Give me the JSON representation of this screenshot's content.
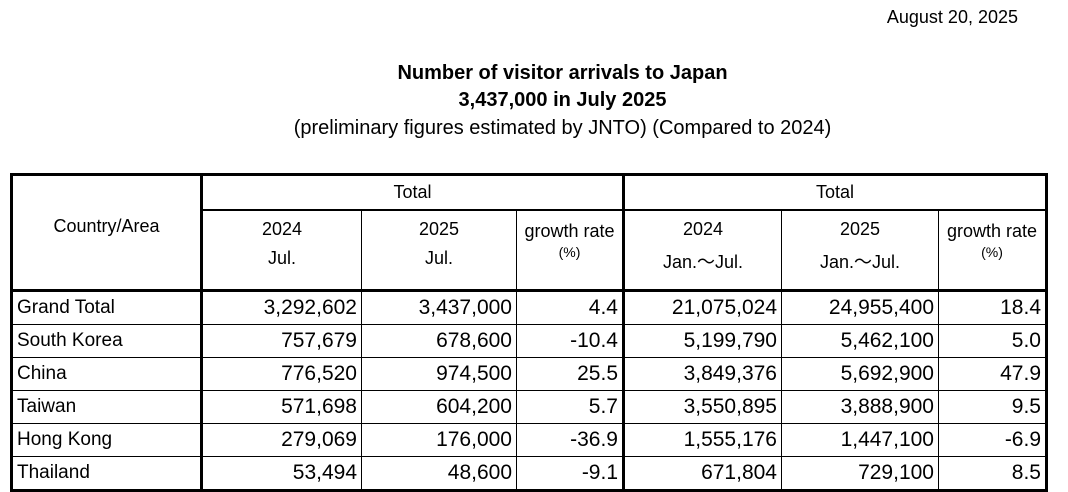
{
  "date": "August 20, 2025",
  "title": "Number of visitor arrivals to Japan",
  "headline": "3,437,000 in July 2025",
  "subtitle": "(preliminary figures estimated by JNTO) (Compared to 2024)",
  "table": {
    "country_header": "Country/Area",
    "group1": {
      "label": "Total",
      "col1_year": "2024",
      "col1_period": "Jul.",
      "col2_year": "2025",
      "col2_period": "Jul.",
      "growth_label": "growth rate",
      "growth_unit": "(%)"
    },
    "group2": {
      "label": "Total",
      "col1_year": "2024",
      "col1_period": "Jan.～Jul.",
      "col2_year": "2025",
      "col2_period": "Jan.～Jul.",
      "growth_label": "growth rate",
      "growth_unit": "(%)"
    },
    "rows": [
      {
        "name": "Grand Total",
        "m2024": "3,292,602",
        "m2025": "3,437,000",
        "mgr": "4.4",
        "y2024": "21,075,024",
        "y2025": "24,955,400",
        "ygr": "18.4"
      },
      {
        "name": "South Korea",
        "m2024": "757,679",
        "m2025": "678,600",
        "mgr": "-10.4",
        "y2024": "5,199,790",
        "y2025": "5,462,100",
        "ygr": "5.0"
      },
      {
        "name": "China",
        "m2024": "776,520",
        "m2025": "974,500",
        "mgr": "25.5",
        "y2024": "3,849,376",
        "y2025": "5,692,900",
        "ygr": "47.9"
      },
      {
        "name": "Taiwan",
        "m2024": "571,698",
        "m2025": "604,200",
        "mgr": "5.7",
        "y2024": "3,550,895",
        "y2025": "3,888,900",
        "ygr": "9.5"
      },
      {
        "name": "Hong Kong",
        "m2024": "279,069",
        "m2025": "176,000",
        "mgr": "-36.9",
        "y2024": "1,555,176",
        "y2025": "1,447,100",
        "ygr": "-6.9"
      },
      {
        "name": "Thailand",
        "m2024": "53,494",
        "m2025": "48,600",
        "mgr": "-9.1",
        "y2024": "671,804",
        "y2025": "729,100",
        "ygr": "8.5"
      }
    ]
  }
}
